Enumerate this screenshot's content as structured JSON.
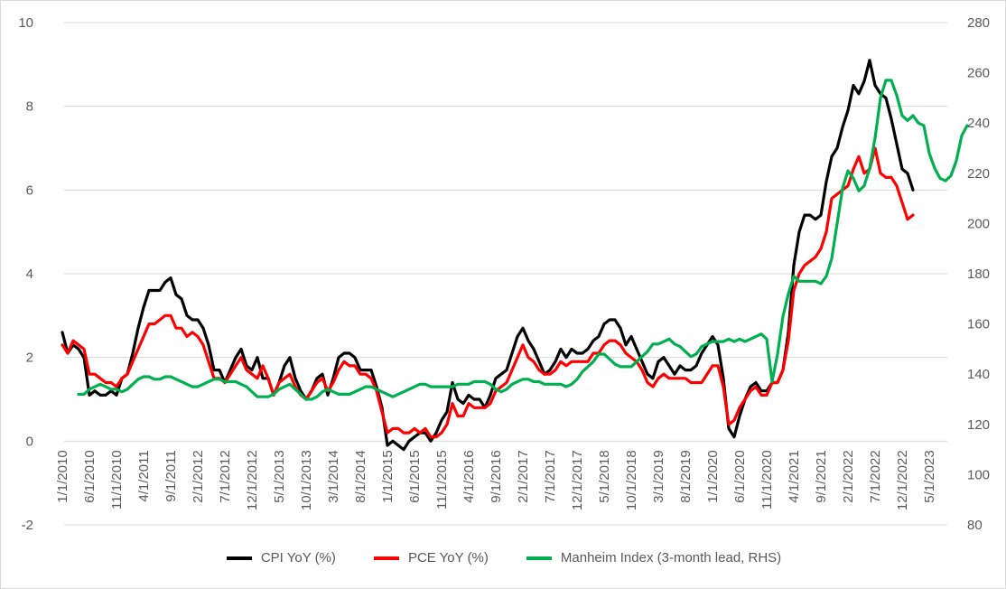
{
  "chart_data": {
    "type": "line",
    "title": "",
    "x_ticks": [
      "1/1/2010",
      "6/1/2010",
      "11/1/2010",
      "4/1/2011",
      "9/1/2011",
      "2/1/2012",
      "7/1/2012",
      "12/1/2012",
      "5/1/2013",
      "10/1/2013",
      "3/1/2014",
      "8/1/2014",
      "1/1/2015",
      "6/1/2015",
      "11/1/2015",
      "4/1/2016",
      "9/1/2016",
      "2/1/2017",
      "7/1/2017",
      "12/1/2017",
      "5/1/2018",
      "10/1/2018",
      "3/1/2019",
      "8/1/2019",
      "1/1/2020",
      "6/1/2020",
      "11/1/2020",
      "4/1/2021",
      "9/1/2021",
      "2/1/2022",
      "7/1/2022",
      "12/1/2022",
      "5/1/2023"
    ],
    "x_start": "1/1/2010",
    "x_end": "7/1/2023",
    "y_left": {
      "min": -2,
      "max": 10,
      "ticks": [
        "-2",
        "0",
        "2",
        "4",
        "6",
        "8",
        "10"
      ]
    },
    "y_right": {
      "min": 80,
      "max": 280,
      "ticks": [
        "80",
        "100",
        "120",
        "140",
        "160",
        "180",
        "200",
        "220",
        "240",
        "260",
        "280"
      ]
    },
    "grid": true,
    "legend_position": "bottom",
    "series": [
      {
        "name": "CPI YoY (%)",
        "color": "#000000",
        "axis": "left",
        "start": "1/1/2010",
        "values": [
          2.6,
          2.1,
          2.3,
          2.2,
          2.0,
          1.1,
          1.2,
          1.1,
          1.1,
          1.2,
          1.1,
          1.5,
          1.6,
          2.1,
          2.7,
          3.2,
          3.6,
          3.6,
          3.6,
          3.8,
          3.9,
          3.5,
          3.4,
          3.0,
          2.9,
          2.9,
          2.7,
          2.3,
          1.7,
          1.7,
          1.4,
          1.7,
          2.0,
          2.2,
          1.8,
          1.7,
          2.0,
          1.5,
          1.5,
          1.1,
          1.4,
          1.8,
          2.0,
          1.5,
          1.2,
          1.0,
          1.2,
          1.5,
          1.6,
          1.1,
          1.5,
          2.0,
          2.1,
          2.1,
          2.0,
          1.7,
          1.7,
          1.7,
          1.3,
          0.8,
          -0.1,
          0.0,
          -0.1,
          -0.2,
          0.0,
          0.1,
          0.2,
          0.2,
          0.0,
          0.2,
          0.5,
          0.7,
          1.4,
          1.0,
          0.9,
          1.1,
          1.0,
          1.0,
          0.8,
          1.1,
          1.5,
          1.6,
          1.7,
          2.1,
          2.5,
          2.7,
          2.4,
          2.2,
          1.9,
          1.6,
          1.7,
          1.9,
          2.2,
          2.0,
          2.2,
          2.1,
          2.1,
          2.2,
          2.4,
          2.5,
          2.8,
          2.9,
          2.9,
          2.7,
          2.3,
          2.5,
          2.2,
          1.9,
          1.6,
          1.5,
          1.9,
          2.0,
          1.8,
          1.6,
          1.8,
          1.7,
          1.7,
          1.8,
          2.1,
          2.3,
          2.5,
          2.3,
          1.5,
          0.3,
          0.1,
          0.6,
          1.0,
          1.3,
          1.4,
          1.2,
          1.2,
          1.4,
          1.4,
          1.7,
          2.6,
          4.2,
          5.0,
          5.4,
          5.4,
          5.3,
          5.4,
          6.2,
          6.8,
          7.0,
          7.5,
          7.9,
          8.5,
          8.3,
          8.6,
          9.1,
          8.5,
          8.3,
          8.2,
          7.7,
          7.1,
          6.5,
          6.4,
          6.0
        ]
      },
      {
        "name": "PCE YoY (%)",
        "color": "#ff0000",
        "axis": "left",
        "start": "1/1/2010",
        "values": [
          2.3,
          2.1,
          2.4,
          2.3,
          2.2,
          1.6,
          1.6,
          1.5,
          1.4,
          1.4,
          1.3,
          1.5,
          1.6,
          1.9,
          2.2,
          2.5,
          2.8,
          2.8,
          2.9,
          3.0,
          3.0,
          2.7,
          2.7,
          2.5,
          2.6,
          2.5,
          2.3,
          1.9,
          1.5,
          1.5,
          1.4,
          1.6,
          1.8,
          2.0,
          1.7,
          1.6,
          1.5,
          1.8,
          1.5,
          1.1,
          1.4,
          1.5,
          1.6,
          1.3,
          1.1,
          1.0,
          1.2,
          1.4,
          1.5,
          1.2,
          1.4,
          1.7,
          1.9,
          1.8,
          1.8,
          1.6,
          1.6,
          1.5,
          1.2,
          0.7,
          0.2,
          0.3,
          0.3,
          0.2,
          0.2,
          0.3,
          0.2,
          0.3,
          0.1,
          0.1,
          0.2,
          0.4,
          0.9,
          0.6,
          0.6,
          0.9,
          0.8,
          0.8,
          0.8,
          0.9,
          1.2,
          1.3,
          1.4,
          1.7,
          2.0,
          2.3,
          2.0,
          1.9,
          1.7,
          1.6,
          1.6,
          1.7,
          1.9,
          1.8,
          1.9,
          1.9,
          1.9,
          1.9,
          2.1,
          2.1,
          2.3,
          2.4,
          2.4,
          2.3,
          2.1,
          2.0,
          1.9,
          1.7,
          1.4,
          1.3,
          1.5,
          1.6,
          1.5,
          1.5,
          1.5,
          1.5,
          1.4,
          1.4,
          1.4,
          1.6,
          1.8,
          1.8,
          1.3,
          0.4,
          0.5,
          0.8,
          1.0,
          1.2,
          1.3,
          1.1,
          1.1,
          1.4,
          1.4,
          1.7,
          2.4,
          3.6,
          4.0,
          4.2,
          4.3,
          4.4,
          4.6,
          5.0,
          5.8,
          5.9,
          6.0,
          6.1,
          6.5,
          6.8,
          6.4,
          6.5,
          7.0,
          6.4,
          6.3,
          6.3,
          6.1,
          5.7,
          5.3,
          5.4
        ]
      },
      {
        "name": "Manheim Index (3-month lead, RHS)",
        "color": "#00b050",
        "axis": "right",
        "start": "4/1/2010",
        "values": [
          132,
          132,
          134,
          135,
          136,
          135,
          134,
          134,
          133,
          134,
          136,
          138,
          139,
          139,
          138,
          138,
          139,
          139,
          138,
          137,
          136,
          135,
          135,
          136,
          137,
          138,
          138,
          137,
          137,
          137,
          136,
          135,
          133,
          131,
          131,
          131,
          132,
          134,
          135,
          136,
          134,
          132,
          130,
          130,
          131,
          133,
          134,
          133,
          132,
          132,
          132,
          133,
          134,
          135,
          135,
          134,
          133,
          132,
          131,
          132,
          133,
          134,
          135,
          136,
          136,
          135,
          135,
          135,
          135,
          135,
          136,
          136,
          136,
          137,
          137,
          137,
          136,
          134,
          133,
          134,
          136,
          137,
          138,
          138,
          137,
          137,
          136,
          136,
          136,
          136,
          135,
          136,
          138,
          141,
          143,
          145,
          148,
          148,
          146,
          144,
          143,
          143,
          143,
          145,
          147,
          149,
          152,
          152,
          153,
          154,
          152,
          151,
          149,
          147,
          148,
          151,
          152,
          153,
          153,
          153,
          154,
          153,
          154,
          153,
          154,
          155,
          156,
          154,
          137,
          148,
          163,
          172,
          179,
          177,
          177,
          177,
          177,
          176,
          179,
          186,
          200,
          214,
          221,
          218,
          213,
          215,
          222,
          234,
          250,
          257,
          257,
          251,
          243,
          241,
          243,
          240,
          239,
          228,
          222,
          218,
          217,
          219,
          225,
          235,
          239
        ]
      }
    ]
  }
}
